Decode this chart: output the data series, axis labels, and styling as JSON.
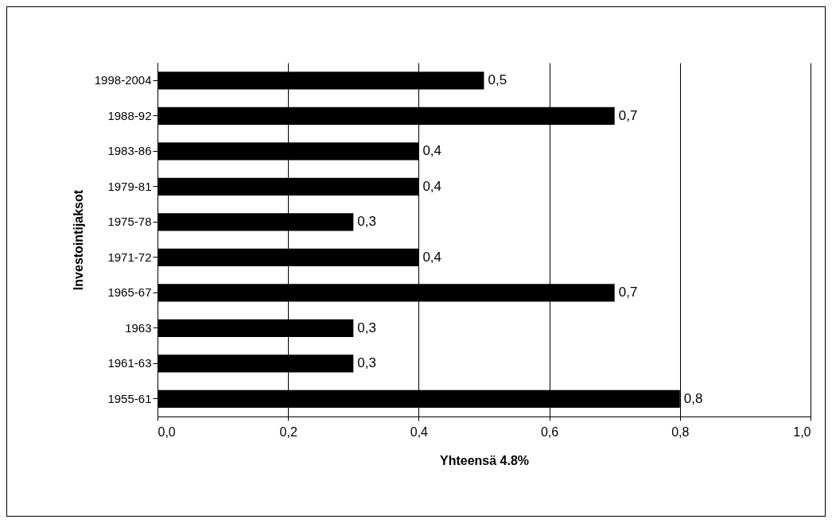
{
  "chart_data": {
    "type": "bar",
    "orientation": "horizontal",
    "xlabel": "Yhteensä 4.8%",
    "ylabel": "Investointijaksot",
    "categories": [
      "1998-2004",
      "1988-92",
      "1983-86",
      "1979-81",
      "1975-78",
      "1971-72",
      "1965-67",
      "1963",
      "1961-63",
      "1955-61"
    ],
    "values": [
      0.5,
      0.7,
      0.4,
      0.4,
      0.3,
      0.4,
      0.7,
      0.3,
      0.3,
      0.8
    ],
    "value_labels": [
      "0,5",
      "0,7",
      "0,4",
      "0,4",
      "0,3",
      "0,4",
      "0,7",
      "0,3",
      "0,3",
      "0,8"
    ],
    "color": "#000000",
    "xlim": [
      0,
      1
    ],
    "xticks": [
      {
        "value": 0,
        "label": "0,0"
      },
      {
        "value": 0.2,
        "label": "0,2"
      },
      {
        "value": 0.4,
        "label": "0,4"
      },
      {
        "value": 0.6,
        "label": "0,6"
      },
      {
        "value": 0.8,
        "label": "0,8"
      },
      {
        "value": 1,
        "label": "1,0"
      }
    ],
    "grid": "x"
  }
}
